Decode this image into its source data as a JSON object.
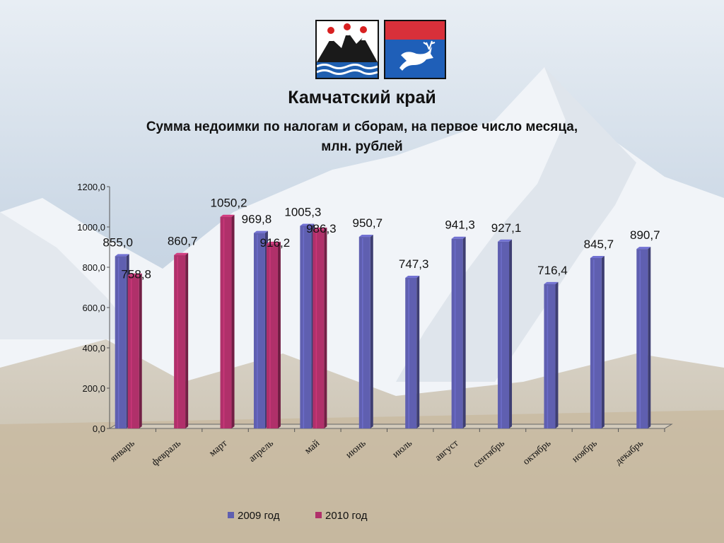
{
  "chart_data": {
    "type": "bar",
    "title": "Камчатский край",
    "subtitle_lines": [
      "Сумма недоимки по налогам и сборам, на первое число месяца,",
      "млн. рублей"
    ],
    "xlabel": "",
    "ylabel": "",
    "ylim": [
      0,
      1200
    ],
    "yticks": [
      "0,0",
      "200,0",
      "400,0",
      "600,0",
      "800,0",
      "1000,0",
      "1200,0"
    ],
    "categories": [
      "январь",
      "февраль",
      "март",
      "апрель",
      "май",
      "июнь",
      "июль",
      "август",
      "сентябрь",
      "октябрь",
      "ноябрь",
      "декабрь"
    ],
    "series": [
      {
        "name": "2009 год",
        "color": "#5f5fb0",
        "values": [
          855.0,
          null,
          null,
          969.8,
          1005.3,
          950.7,
          747.3,
          941.3,
          927.1,
          716.4,
          845.7,
          890.7
        ],
        "labels": [
          "855,0",
          "",
          "",
          "969,8",
          "1005,3",
          "950,7",
          "747,3",
          "941,3",
          "927,1",
          "716,4",
          "845,7",
          "890,7"
        ]
      },
      {
        "name": "2010 год",
        "color": "#b0306a",
        "values": [
          758.8,
          860.7,
          1050.2,
          916.2,
          986.3,
          null,
          null,
          null,
          null,
          null,
          null,
          null
        ],
        "labels": [
          "758,8",
          "860,7",
          "1050,2",
          "916,2",
          "986,3",
          "",
          "",
          "",
          "",
          "",
          "",
          ""
        ]
      }
    ],
    "legend_position": "bottom",
    "grid": false
  }
}
